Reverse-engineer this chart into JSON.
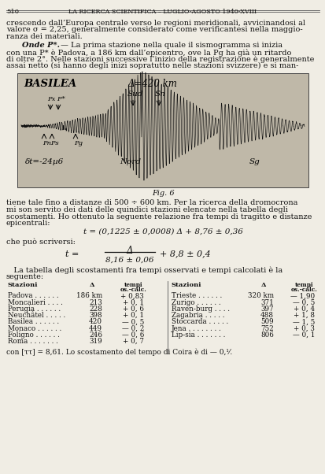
{
  "page_number": "510",
  "header": "LA RICERCA SCIENTIFICA – LUGLIO-AGOSTO 1940-XVIII",
  "bg_color": "#f0ede4",
  "text_color": "#1a1a1a",
  "paragraph1_lines": [
    "crescendo dall’Europa centrale verso le regioni meridionali, avvicinandosi al",
    "valore σ = 2,25, generalmente considerato come verificantesi nella maggio-",
    "ranza dei materiali."
  ],
  "paragraph2_indent_label": "Onde P*.",
  "paragraph2_lines": [
    " — La prima stazione nella quale il sismogramma si inizia",
    "con una P* è Padova, a 186 km dall’epicentro, ove la Pg ha già un ritardo",
    "di oltre 2°. Nelle stazioni successive l’inizio della registrazione è generalmente",
    "assai netto (si hanno degli inizi sopratutto nelle stazioni svizzere) e si man-"
  ],
  "seismo_label_basilea": "BASILEA",
  "seismo_label_delta": "Δ=420 km",
  "seismo_label_sud": "Sud",
  "seismo_label_sn": "Sn",
  "seismo_label_nord": "Nord",
  "seismo_label_sg": "Sg",
  "seismo_label_px": "Px P*",
  "seismo_label_pn": "PnPs",
  "seismo_label_pg": "Pg",
  "seismo_label_dt": "δt=-24µ6",
  "fig_caption": "Fig. 6",
  "para3_lines": [
    "tiene tale fino a distanze di 500 ÷ 600 km. Per la ricerca della dromocrona",
    "mi son servito dei dati delle quindici stazioni elencate nella tabella degli",
    "scostamenti. Ho ottenuto la seguente relazione fra tempi di tragitto e distanze",
    "epicentrali:"
  ],
  "eq1": "t = (0,1225 ± 0,0008) Δ + 8,76 ± 0,36",
  "eq2_label": "che può scriversi:",
  "eq2_t": "t =",
  "eq2_numerator": "Δ",
  "eq2_denominator": "8,16 ± 0,06",
  "eq2_suffix": "+ 8,8 ± 0,4",
  "para4_lines": [
    "   La tabella degli scostamenti fra tempi osservati e tempi calcolati è la",
    "seguente:"
  ],
  "col_header_left": [
    "Stazioni",
    "Δ",
    "tempi\nos.-calc."
  ],
  "col_header_right": [
    "Stazioni",
    "Δ",
    "tempi\nos.-calc."
  ],
  "table_left": [
    [
      "Padova . . . . . .",
      "186 km",
      "+ 0,83"
    ],
    [
      "Moncalieri . . . .",
      "213",
      "+ 0, 1"
    ],
    [
      "Perugia . . . . . .",
      "228",
      "+ 0, 6"
    ],
    [
      "Neuchâtel . . . . .",
      "398",
      "+ 0, 1"
    ],
    [
      "Basilea . . . . . .",
      "420",
      "— 0, 5"
    ],
    [
      "Monaco . . . . . .",
      "449",
      "— 0, 2"
    ],
    [
      "Foligno . . . . . .",
      "246",
      "— 0, 6"
    ],
    [
      "Roma . . . . . . .",
      "319",
      "+ 0, 7"
    ]
  ],
  "table_right": [
    [
      "Trieste . . . . . .",
      "320 km",
      "— 1,90"
    ],
    [
      "Zurigo . . . . . .",
      "371",
      "— 0, 5"
    ],
    [
      "Raven-burg . . . .",
      "397",
      "+ 0, 4"
    ],
    [
      "Zagabria . . . . .",
      "488",
      "+ 1, 8"
    ],
    [
      "Stoccarda . . . . .",
      "509",
      "— 1, 5"
    ],
    [
      "Jena . . . . . . . .",
      "752",
      "+ 0, 3"
    ],
    [
      "Lip-sia . . . . . . .",
      "806",
      "— 0, 1"
    ]
  ],
  "footer": "con [ττ] = 8,61. Lo scostamento del tempo di Coira è di — 0,¹⁄."
}
